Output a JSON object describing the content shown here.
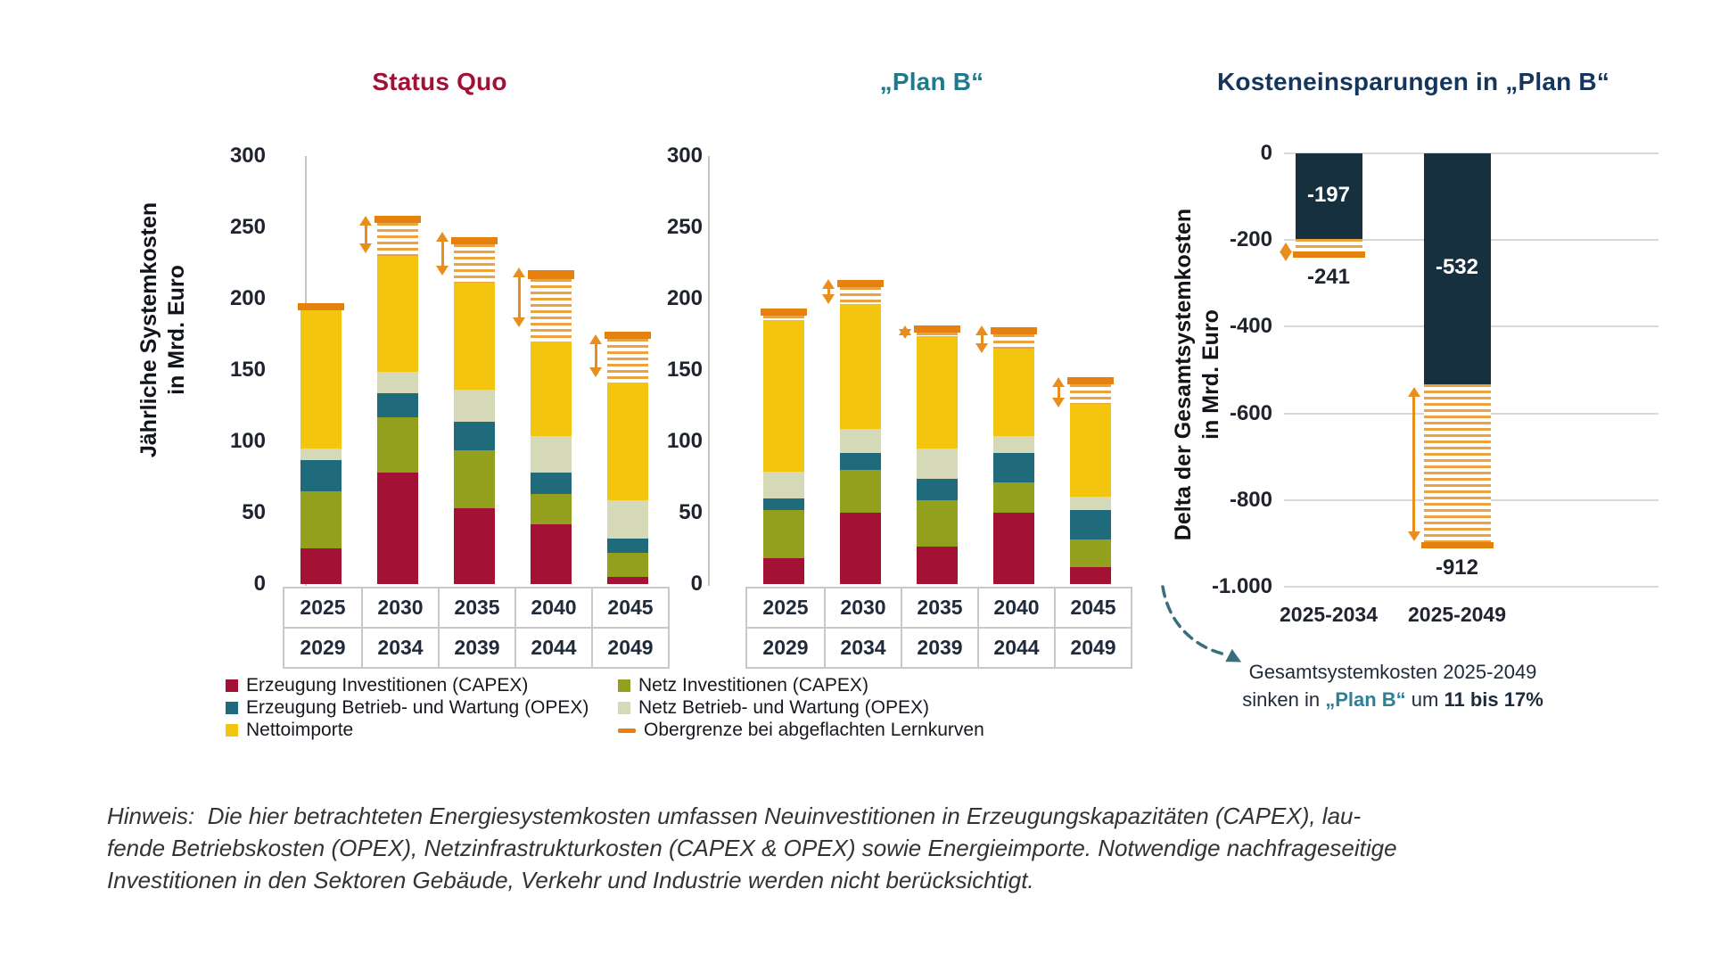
{
  "colors": {
    "series": {
      "erzeugung_capex": "#A31234",
      "netz_capex": "#93A01D",
      "erzeugung_opex": "#1F6B7C",
      "netz_opex": "#D6D9B7",
      "nettoimporte": "#F3C50F",
      "hatch": "#ECA33F",
      "cap": "#E5820F",
      "arrow": "#E78E1E",
      "navy": "#16303F"
    },
    "titles": {
      "status_quo": "#A11035",
      "plan_b": "#1F7A8E",
      "savings": "#14365C"
    },
    "annotation_teal": "#2E8096",
    "dashed_arrow": "#3A6F7D",
    "axis_text": "#20242F",
    "grid": "#D9D9D9",
    "grid_axis": "#C6C6C6",
    "table_border": "#C8C8C8"
  },
  "chart_data": [
    {
      "id": "status_quo",
      "type": "bar",
      "stacked": true,
      "title": "Status Quo",
      "ylabel_lines": [
        "Jährliche Systemkosten",
        "in Mrd. Euro"
      ],
      "ylim": [
        0,
        300
      ],
      "yticks": [
        300,
        250,
        200,
        150,
        100,
        50,
        0
      ],
      "categories": [
        [
          "2025",
          "2029"
        ],
        [
          "2030",
          "2034"
        ],
        [
          "2035",
          "2039"
        ],
        [
          "2040",
          "2044"
        ],
        [
          "2045",
          "2049"
        ]
      ],
      "series": [
        {
          "name": "Erzeugung Investitionen (CAPEX)",
          "color_key": "erzeugung_capex",
          "values": [
            25,
            78,
            53,
            42,
            5
          ]
        },
        {
          "name": "Netz Investitionen (CAPEX)",
          "color_key": "netz_capex",
          "values": [
            40,
            39,
            41,
            21,
            17
          ]
        },
        {
          "name": "Erzeugung Betrieb- und Wartung (OPEX)",
          "color_key": "erzeugung_opex",
          "values": [
            22,
            17,
            20,
            15,
            10
          ]
        },
        {
          "name": "Netz Betrieb- und Wartung (OPEX)",
          "color_key": "netz_opex",
          "values": [
            8,
            15,
            22,
            26,
            27
          ]
        },
        {
          "name": "Nettoimporte",
          "color_key": "nettoimporte",
          "values": [
            97,
            81,
            75,
            66,
            82
          ]
        }
      ],
      "upper_bound": {
        "name": "Obergrenze bei abgeflachten Lernkurven",
        "hatched_to": [
          192,
          253,
          238,
          214,
          172
        ],
        "cap_to": [
          197,
          258,
          243,
          220,
          177
        ]
      },
      "range_arrows": [
        null,
        [
          232,
          258
        ],
        [
          216,
          247
        ],
        [
          180,
          222
        ],
        [
          145,
          175
        ]
      ]
    },
    {
      "id": "plan_b",
      "type": "bar",
      "stacked": true,
      "title": "„Plan B“",
      "ylabel_lines": [],
      "ylim": [
        0,
        300
      ],
      "yticks": [
        300,
        250,
        200,
        150,
        100,
        50,
        0
      ],
      "categories": [
        [
          "2025",
          "2029"
        ],
        [
          "2030",
          "2034"
        ],
        [
          "2035",
          "2039"
        ],
        [
          "2040",
          "2044"
        ],
        [
          "2045",
          "2049"
        ]
      ],
      "series": [
        {
          "name": "Erzeugung Investitionen (CAPEX)",
          "color_key": "erzeugung_capex",
          "values": [
            18,
            50,
            26,
            50,
            12
          ]
        },
        {
          "name": "Netz Investitionen (CAPEX)",
          "color_key": "netz_capex",
          "values": [
            34,
            30,
            33,
            21,
            19
          ]
        },
        {
          "name": "Erzeugung Betrieb- und Wartung (OPEX)",
          "color_key": "erzeugung_opex",
          "values": [
            8,
            12,
            15,
            21,
            21
          ]
        },
        {
          "name": "Netz Betrieb- und Wartung (OPEX)",
          "color_key": "netz_opex",
          "values": [
            19,
            17,
            21,
            12,
            9
          ]
        },
        {
          "name": "Nettoimporte",
          "color_key": "nettoimporte",
          "values": [
            106,
            87,
            79,
            61,
            65
          ]
        }
      ],
      "upper_bound": {
        "name": "Obergrenze bei abgeflachten Lernkurven",
        "hatched_to": [
          188,
          208,
          176,
          175,
          140
        ],
        "cap_to": [
          193,
          213,
          181,
          180,
          145
        ]
      },
      "range_arrows": [
        null,
        [
          196,
          214
        ],
        [
          172,
          181
        ],
        [
          162,
          181
        ],
        [
          124,
          145
        ]
      ]
    },
    {
      "id": "savings",
      "type": "bar",
      "stacked": false,
      "title": "Kosteneinsparungen in „Plan B“",
      "ylabel_lines": [
        "Delta der Gesamtsystemkosten",
        "in Mrd. Euro"
      ],
      "ylim": [
        -1000,
        0
      ],
      "yticks": [
        0,
        -200,
        -400,
        -600,
        -800,
        -1000
      ],
      "ytick_labels": [
        "0",
        "-200",
        "-400",
        "-600",
        "-800",
        "-1.000"
      ],
      "categories": [
        "2025-2034",
        "2025-2049"
      ],
      "series": [
        {
          "name": "Delta der Gesamtsystemkosten",
          "color_key": "navy",
          "values": [
            -197,
            -532
          ]
        }
      ],
      "bar_labels": [
        "-197",
        "-532"
      ],
      "upper_bound": {
        "name": "Obergrenze bei abgeflachten Lernkurven",
        "hatched_to": [
          -226,
          -897
        ],
        "cap_to": [
          -241,
          -912
        ]
      },
      "total_labels": [
        "-241",
        "-912"
      ],
      "range_arrows": [
        [
          -250,
          -205
        ],
        [
          -895,
          -540
        ]
      ],
      "grid": true
    }
  ],
  "legend": {
    "columns": [
      [
        {
          "label": "Erzeugung Investitionen (CAPEX)",
          "color_key": "erzeugung_capex",
          "swatch": "square"
        },
        {
          "label": "Erzeugung Betrieb- und Wartung (OPEX)",
          "color_key": "erzeugung_opex",
          "swatch": "square"
        },
        {
          "label": "Nettoimporte",
          "color_key": "nettoimporte",
          "swatch": "square"
        }
      ],
      [
        {
          "label": "Netz Investitionen (CAPEX)",
          "color_key": "netz_capex",
          "swatch": "square"
        },
        {
          "label": "Netz Betrieb- und Wartung (OPEX)",
          "color_key": "netz_opex",
          "swatch": "square"
        },
        {
          "label": "Obergrenze bei abgeflachten Lernkurven",
          "color_key": "cap",
          "swatch": "dash"
        }
      ]
    ]
  },
  "annotation": {
    "line1": "Gesamtsystemkosten 2025-2049",
    "line2_prefix": "sinken in ",
    "line2_planb": "„Plan B“",
    "line2_mid": " um ",
    "line2_bold": "11 bis 17%"
  },
  "note": {
    "lines": [
      "Hinweis:  Die hier betrachteten Energiesystemkosten umfassen Neuinvestitionen in Erzeugungskapazitäten (CAPEX), lau-",
      "fende Betriebskosten (OPEX), Netzinfrastrukturkosten (CAPEX & OPEX) sowie Energieimporte. Notwendige nachfrageseitige",
      "Investitionen in den Sektoren Gebäude, Verkehr und Industrie werden nicht berücksichtigt."
    ]
  }
}
